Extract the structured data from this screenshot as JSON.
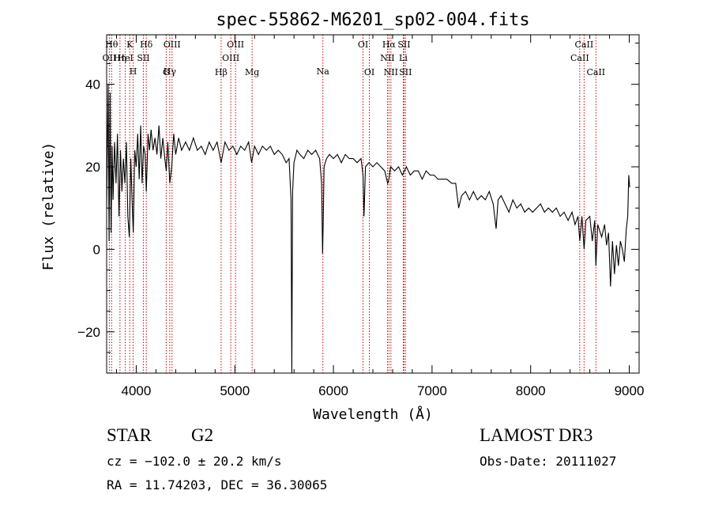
{
  "chart_data": {
    "type": "line",
    "title": "spec-55862-M6201_sp02-004.fits",
    "xlabel": "Wavelength (Å)",
    "ylabel": "Flux (relative)",
    "xlim": [
      3700,
      9100
    ],
    "ylim": [
      -30,
      52
    ],
    "x_ticks": [
      4000,
      5000,
      6000,
      7000,
      8000,
      9000
    ],
    "x_tick_labels": [
      "4000",
      "5000",
      "6000",
      "7000",
      "8000",
      "9000"
    ],
    "y_ticks": [
      -20,
      0,
      20,
      40
    ],
    "y_tick_labels": [
      "−20",
      "0",
      "20",
      "40"
    ],
    "x_minor_step": 200,
    "y_minor_step": 5,
    "spectrum_points": [
      [
        3700,
        10
      ],
      [
        3715,
        40
      ],
      [
        3725,
        2
      ],
      [
        3735,
        38
      ],
      [
        3745,
        4
      ],
      [
        3755,
        25
      ],
      [
        3765,
        12
      ],
      [
        3780,
        26
      ],
      [
        3795,
        16
      ],
      [
        3810,
        28
      ],
      [
        3825,
        8
      ],
      [
        3840,
        24
      ],
      [
        3855,
        14
      ],
      [
        3870,
        22
      ],
      [
        3885,
        16
      ],
      [
        3900,
        26
      ],
      [
        3915,
        8
      ],
      [
        3930,
        3
      ],
      [
        3945,
        22
      ],
      [
        3960,
        10
      ],
      [
        3970,
        4
      ],
      [
        3985,
        24
      ],
      [
        4000,
        20
      ],
      [
        4015,
        28
      ],
      [
        4030,
        17
      ],
      [
        4045,
        30
      ],
      [
        4060,
        16
      ],
      [
        4075,
        25
      ],
      [
        4090,
        23
      ],
      [
        4102,
        14
      ],
      [
        4120,
        28
      ],
      [
        4135,
        24
      ],
      [
        4150,
        29
      ],
      [
        4170,
        24
      ],
      [
        4190,
        27
      ],
      [
        4210,
        23
      ],
      [
        4230,
        30
      ],
      [
        4250,
        22
      ],
      [
        4270,
        27
      ],
      [
        4290,
        22
      ],
      [
        4305,
        19
      ],
      [
        4320,
        26
      ],
      [
        4340,
        16
      ],
      [
        4360,
        20
      ],
      [
        4380,
        28
      ],
      [
        4400,
        23
      ],
      [
        4430,
        27
      ],
      [
        4460,
        24
      ],
      [
        4500,
        26
      ],
      [
        4540,
        24
      ],
      [
        4580,
        27
      ],
      [
        4620,
        24
      ],
      [
        4660,
        25
      ],
      [
        4700,
        23
      ],
      [
        4740,
        26
      ],
      [
        4780,
        24
      ],
      [
        4820,
        26
      ],
      [
        4861,
        21
      ],
      [
        4900,
        26
      ],
      [
        4940,
        24
      ],
      [
        4980,
        25
      ],
      [
        5020,
        23
      ],
      [
        5060,
        25
      ],
      [
        5100,
        24
      ],
      [
        5140,
        26
      ],
      [
        5170,
        21
      ],
      [
        5200,
        25
      ],
      [
        5240,
        23
      ],
      [
        5280,
        25
      ],
      [
        5320,
        24
      ],
      [
        5360,
        25
      ],
      [
        5400,
        23
      ],
      [
        5440,
        24
      ],
      [
        5480,
        23
      ],
      [
        5520,
        21
      ],
      [
        5550,
        22
      ],
      [
        5570,
        12
      ],
      [
        5578,
        -30
      ],
      [
        5586,
        14
      ],
      [
        5600,
        21
      ],
      [
        5630,
        24
      ],
      [
        5660,
        23
      ],
      [
        5700,
        22
      ],
      [
        5740,
        24
      ],
      [
        5780,
        23
      ],
      [
        5820,
        24
      ],
      [
        5860,
        22
      ],
      [
        5880,
        16
      ],
      [
        5890,
        -1
      ],
      [
        5896,
        6
      ],
      [
        5905,
        20
      ],
      [
        5930,
        22
      ],
      [
        5960,
        23
      ],
      [
        6000,
        22
      ],
      [
        6040,
        23
      ],
      [
        6080,
        21
      ],
      [
        6120,
        23
      ],
      [
        6160,
        22
      ],
      [
        6200,
        22
      ],
      [
        6240,
        21
      ],
      [
        6280,
        22
      ],
      [
        6300,
        18
      ],
      [
        6310,
        8
      ],
      [
        6325,
        20
      ],
      [
        6360,
        21
      ],
      [
        6400,
        20
      ],
      [
        6440,
        21
      ],
      [
        6480,
        20
      ],
      [
        6520,
        19
      ],
      [
        6550,
        16
      ],
      [
        6563,
        17
      ],
      [
        6580,
        20
      ],
      [
        6620,
        19
      ],
      [
        6660,
        20
      ],
      [
        6700,
        18
      ],
      [
        6740,
        20
      ],
      [
        6780,
        18
      ],
      [
        6820,
        19
      ],
      [
        6860,
        19
      ],
      [
        6900,
        17
      ],
      [
        6940,
        19
      ],
      [
        6980,
        18
      ],
      [
        7020,
        18
      ],
      [
        7060,
        17
      ],
      [
        7100,
        17
      ],
      [
        7150,
        17
      ],
      [
        7200,
        16
      ],
      [
        7240,
        16
      ],
      [
        7270,
        10
      ],
      [
        7300,
        13
      ],
      [
        7340,
        14
      ],
      [
        7380,
        12
      ],
      [
        7420,
        14
      ],
      [
        7460,
        12
      ],
      [
        7500,
        13
      ],
      [
        7540,
        12
      ],
      [
        7580,
        14
      ],
      [
        7620,
        11
      ],
      [
        7650,
        5
      ],
      [
        7670,
        12
      ],
      [
        7700,
        13
      ],
      [
        7740,
        11
      ],
      [
        7780,
        9
      ],
      [
        7820,
        12
      ],
      [
        7860,
        10
      ],
      [
        7900,
        11
      ],
      [
        7940,
        9
      ],
      [
        7980,
        10
      ],
      [
        8020,
        9
      ],
      [
        8060,
        10
      ],
      [
        8100,
        11
      ],
      [
        8140,
        9
      ],
      [
        8180,
        10
      ],
      [
        8220,
        9
      ],
      [
        8260,
        10
      ],
      [
        8300,
        8
      ],
      [
        8340,
        9
      ],
      [
        8380,
        7
      ],
      [
        8420,
        9
      ],
      [
        8450,
        6
      ],
      [
        8480,
        8
      ],
      [
        8498,
        2
      ],
      [
        8520,
        8
      ],
      [
        8542,
        0
      ],
      [
        8560,
        7
      ],
      [
        8600,
        8
      ],
      [
        8625,
        2
      ],
      [
        8650,
        7
      ],
      [
        8662,
        -4
      ],
      [
        8680,
        6
      ],
      [
        8720,
        3
      ],
      [
        8750,
        6
      ],
      [
        8770,
        1
      ],
      [
        8790,
        4
      ],
      [
        8810,
        -9
      ],
      [
        8830,
        2
      ],
      [
        8850,
        -6
      ],
      [
        8870,
        1
      ],
      [
        8890,
        -4
      ],
      [
        8910,
        2
      ],
      [
        8930,
        0
      ],
      [
        8950,
        -3
      ],
      [
        8970,
        5
      ],
      [
        8985,
        8
      ],
      [
        8995,
        18
      ],
      [
        9005,
        15
      ]
    ],
    "lines": [
      {
        "label": "OII",
        "x": 3727,
        "row": 2
      },
      {
        "label": "Hθ",
        "x": 3750,
        "row": 1
      },
      {
        "label": "Hη",
        "x": 3835,
        "row": 2
      },
      {
        "label": "HeI",
        "x": 3889,
        "row": 2
      },
      {
        "label": "K",
        "x": 3934,
        "row": 1
      },
      {
        "label": "H",
        "x": 3969,
        "row": 3
      },
      {
        "label": "SII",
        "x": 4072,
        "row": 2
      },
      {
        "label": "Hδ",
        "x": 4102,
        "row": 1
      },
      {
        "label": "G",
        "x": 4304,
        "row": 4
      },
      {
        "label": "Hγ",
        "x": 4340,
        "row": 3
      },
      {
        "label": "OIII",
        "x": 4363,
        "row": 1
      },
      {
        "label": "Hβ",
        "x": 4861,
        "row": 4
      },
      {
        "label": "OIII",
        "x": 4959,
        "row": 2
      },
      {
        "label": "OIII",
        "x": 5007,
        "row": 1
      },
      {
        "label": "Mg",
        "x": 5175,
        "row": 4
      },
      {
        "label": "Na",
        "x": 5893,
        "row": 3
      },
      {
        "label": "OI",
        "x": 6300,
        "row": 1
      },
      {
        "label": "OI",
        "x": 6364,
        "row": 4
      },
      {
        "label": "NII",
        "x": 6548,
        "row": 2
      },
      {
        "label": "Hα",
        "x": 6563,
        "row": 1
      },
      {
        "label": "NII",
        "x": 6583,
        "row": 4
      },
      {
        "label": "SII",
        "x": 6716,
        "row": 1
      },
      {
        "label": "Li",
        "x": 6708,
        "row": 2
      },
      {
        "label": "SII",
        "x": 6731,
        "row": 4
      },
      {
        "label": "CaII",
        "x": 8498,
        "row": 2
      },
      {
        "label": "CaII",
        "x": 8542,
        "row": 1
      },
      {
        "label": "CaII",
        "x": 8662,
        "row": 4
      }
    ]
  },
  "info": {
    "class": "STAR",
    "subclass": "G2",
    "survey": "LAMOST DR3",
    "cz": "cz = −102.0 ± 20.2 km/s",
    "obs_date": "Obs-Date: 20111027",
    "coords": "RA =  11.74203, DEC =  36.30065"
  },
  "colors": {
    "spectrum": "#000000",
    "line_markers": "#cc0000",
    "axes": "#000000"
  }
}
